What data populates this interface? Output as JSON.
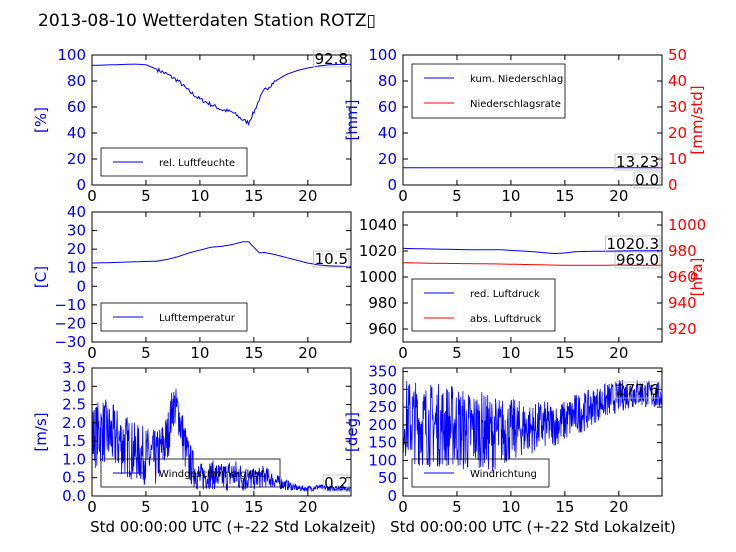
{
  "title": "2013-08-10 Wetterdaten Station ROTZ\u0000",
  "colors": {
    "blue": "#0000ff",
    "red": "#ff0000",
    "frame": "#000000"
  },
  "chart_data": [
    {
      "type": "line",
      "ylabel": "[%]",
      "xlim": [
        0,
        24
      ],
      "ylim": [
        0,
        100
      ],
      "xticks": [
        "0",
        "5",
        "10",
        "15",
        "20"
      ],
      "yticks": [
        "0",
        "20",
        "40",
        "60",
        "80",
        "100"
      ],
      "legend": "bottom-left",
      "last_value": "92.8",
      "series": [
        {
          "name": "rel. Luftfeuchte",
          "color": "#0000ff",
          "x": [
            0,
            2,
            4,
            5,
            6,
            7,
            8,
            9,
            10,
            11,
            12,
            13,
            14,
            14.5,
            15,
            15.5,
            16,
            17,
            18,
            19,
            20,
            21,
            22,
            23,
            24
          ],
          "y": [
            92,
            92.5,
            93,
            92.5,
            89,
            85,
            80,
            72,
            66,
            62,
            58,
            56,
            50,
            48,
            56,
            66,
            73,
            80,
            85,
            88,
            90,
            91.5,
            92.5,
            92.8,
            92.8
          ]
        }
      ]
    },
    {
      "type": "line",
      "ylabel": "[mm]",
      "ylabel2": "[mm/std]",
      "xlim": [
        0,
        24
      ],
      "ylim": [
        0,
        100
      ],
      "ylim2": [
        0,
        50
      ],
      "xticks": [
        "0",
        "5",
        "10",
        "15",
        "20"
      ],
      "yticks": [
        "0",
        "20",
        "40",
        "60",
        "80",
        "100"
      ],
      "yticks2": [
        "0",
        "10",
        "20",
        "30",
        "40",
        "50"
      ],
      "legend": "top-left",
      "last_values": [
        "13.23",
        "0.0"
      ],
      "series": [
        {
          "name": "kum. Niederschlag",
          "color": "#0000ff",
          "x": [
            0,
            24
          ],
          "y": [
            13.23,
            13.23
          ]
        },
        {
          "name": "Niederschlagsrate",
          "color": "#ff0000",
          "axis": "right",
          "x": [
            0,
            24
          ],
          "y": [
            0,
            0
          ]
        }
      ]
    },
    {
      "type": "line",
      "ylabel": "[C]",
      "xlim": [
        0,
        24
      ],
      "ylim": [
        -30,
        40
      ],
      "xticks": [
        "0",
        "5",
        "10",
        "15",
        "20"
      ],
      "yticks": [
        "−30",
        "−20",
        "−10",
        "0",
        "10",
        "20",
        "30",
        "40"
      ],
      "legend": "bottom-left",
      "last_value": "10.5",
      "series": [
        {
          "name": "Lufttemperatur",
          "color": "#0000ff",
          "x": [
            0,
            2,
            4,
            6,
            7,
            8,
            9,
            10,
            11,
            12,
            13,
            14,
            14.5,
            15,
            15.5,
            16,
            17,
            18,
            19,
            20,
            21,
            22,
            23,
            24
          ],
          "y": [
            12.5,
            12.8,
            13.2,
            13.5,
            14.5,
            16,
            18,
            19.5,
            21,
            21.5,
            22.5,
            24,
            24,
            21,
            18,
            18.2,
            17,
            15.5,
            14,
            12.5,
            11.5,
            11,
            10.8,
            10.5
          ]
        }
      ]
    },
    {
      "type": "line",
      "ylabel": "",
      "ylabel2": "[hPa]",
      "xlim": [
        0,
        24
      ],
      "ylim": [
        950,
        1050
      ],
      "ylim2": [
        910,
        1010
      ],
      "xticks": [
        "0",
        "5",
        "10",
        "15",
        "20"
      ],
      "yticks": [
        "960",
        "980",
        "1000",
        "1020",
        "1040"
      ],
      "yticks2": [
        "920",
        "940",
        "960",
        "980",
        "1000"
      ],
      "legend": "bottom-left",
      "last_values": [
        "1020.3",
        "969.0"
      ],
      "series": [
        {
          "name": "red. Luftdruck",
          "color": "#0000ff",
          "x": [
            0,
            3,
            6,
            9,
            12,
            14,
            15,
            16,
            18,
            20,
            22,
            24
          ],
          "y": [
            1022,
            1021.5,
            1021,
            1021,
            1019.5,
            1018,
            1018.5,
            1019.5,
            1019.8,
            1020,
            1020.2,
            1020.3
          ]
        },
        {
          "name": "abs. Luftdruck",
          "color": "#ff0000",
          "axis": "right",
          "x": [
            0,
            3,
            6,
            9,
            12,
            15,
            18,
            20,
            22,
            24
          ],
          "y": [
            971,
            970.5,
            970.3,
            970,
            969.5,
            969,
            969,
            969.2,
            969,
            969
          ]
        }
      ]
    },
    {
      "type": "line",
      "ylabel": "[m/s]",
      "xlim": [
        0,
        24
      ],
      "ylim": [
        0,
        3.5
      ],
      "xticks": [
        "0",
        "5",
        "10",
        "15",
        "20"
      ],
      "yticks": [
        "0.0",
        "0.5",
        "1.0",
        "1.5",
        "2.0",
        "2.5",
        "3.0",
        "3.5"
      ],
      "legend": "bottom-left",
      "last_value": "0.2",
      "series": [
        {
          "name": "Windgeschwindigkeit",
          "color": "#0000ff",
          "noisy": true,
          "x": [
            0,
            1,
            2,
            3,
            4,
            5,
            6,
            7,
            7.5,
            8,
            8.5,
            9,
            10,
            11,
            12,
            13,
            14,
            15,
            16,
            17,
            18,
            19,
            20,
            21,
            22,
            23,
            24
          ],
          "y": [
            1.6,
            1.8,
            1.6,
            1.4,
            1.2,
            1.1,
            1.0,
            1.6,
            2.5,
            2.3,
            1.5,
            0.9,
            0.5,
            0.6,
            0.5,
            0.6,
            0.5,
            0.45,
            0.55,
            0.4,
            0.3,
            0.22,
            0.2,
            0.25,
            0.2,
            0.22,
            0.2
          ],
          "amp": [
            0.9,
            0.9,
            0.9,
            0.9,
            0.8,
            0.8,
            0.8,
            0.7,
            0.6,
            0.6,
            0.7,
            0.6,
            0.4,
            0.4,
            0.4,
            0.45,
            0.4,
            0.3,
            0.3,
            0.2,
            0.15,
            0.08,
            0.08,
            0.08,
            0.08,
            0.08,
            0.08
          ]
        }
      ]
    },
    {
      "type": "line",
      "ylabel": "[deg]",
      "xlim": [
        0,
        24
      ],
      "ylim": [
        0,
        360
      ],
      "xticks": [
        "0",
        "5",
        "10",
        "15",
        "20"
      ],
      "yticks": [
        "0",
        "50",
        "100",
        "150",
        "200",
        "250",
        "300",
        "350"
      ],
      "legend": "bottom-left",
      "last_value": "277.6",
      "series": [
        {
          "name": "Windrichtung",
          "color": "#0000ff",
          "noisy": true,
          "x": [
            0,
            1,
            2,
            3,
            4,
            5,
            6,
            7,
            8,
            9,
            10,
            11,
            12,
            13,
            14,
            15,
            16,
            17,
            18,
            19,
            20,
            21,
            22,
            23,
            24
          ],
          "y": [
            220,
            210,
            200,
            200,
            200,
            195,
            180,
            190,
            175,
            180,
            185,
            190,
            190,
            200,
            200,
            210,
            230,
            240,
            260,
            270,
            280,
            290,
            290,
            285,
            280
          ],
          "amp": [
            110,
            120,
            120,
            120,
            120,
            120,
            120,
            110,
            110,
            100,
            90,
            80,
            70,
            70,
            60,
            60,
            60,
            55,
            50,
            50,
            45,
            45,
            40,
            40,
            40
          ]
        }
      ]
    }
  ]
}
